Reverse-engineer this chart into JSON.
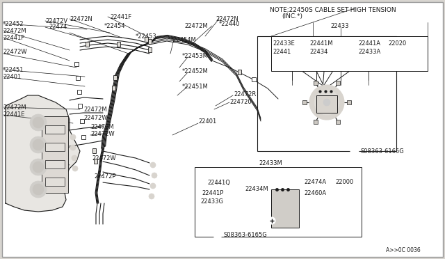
{
  "bg_color": "#d8d5d0",
  "diagram_bg": "#ffffff",
  "line_color": "#1a1a1a",
  "text_color": "#1a1a1a",
  "note_line1": "NOTE;22450S CABLE SET-HIGH TENSION",
  "note_line2": "(INC.*)",
  "diagram_code": "A>>0C 0036",
  "font_size": 6.0,
  "font_size_note": 6.5,
  "page_border": "#999999"
}
